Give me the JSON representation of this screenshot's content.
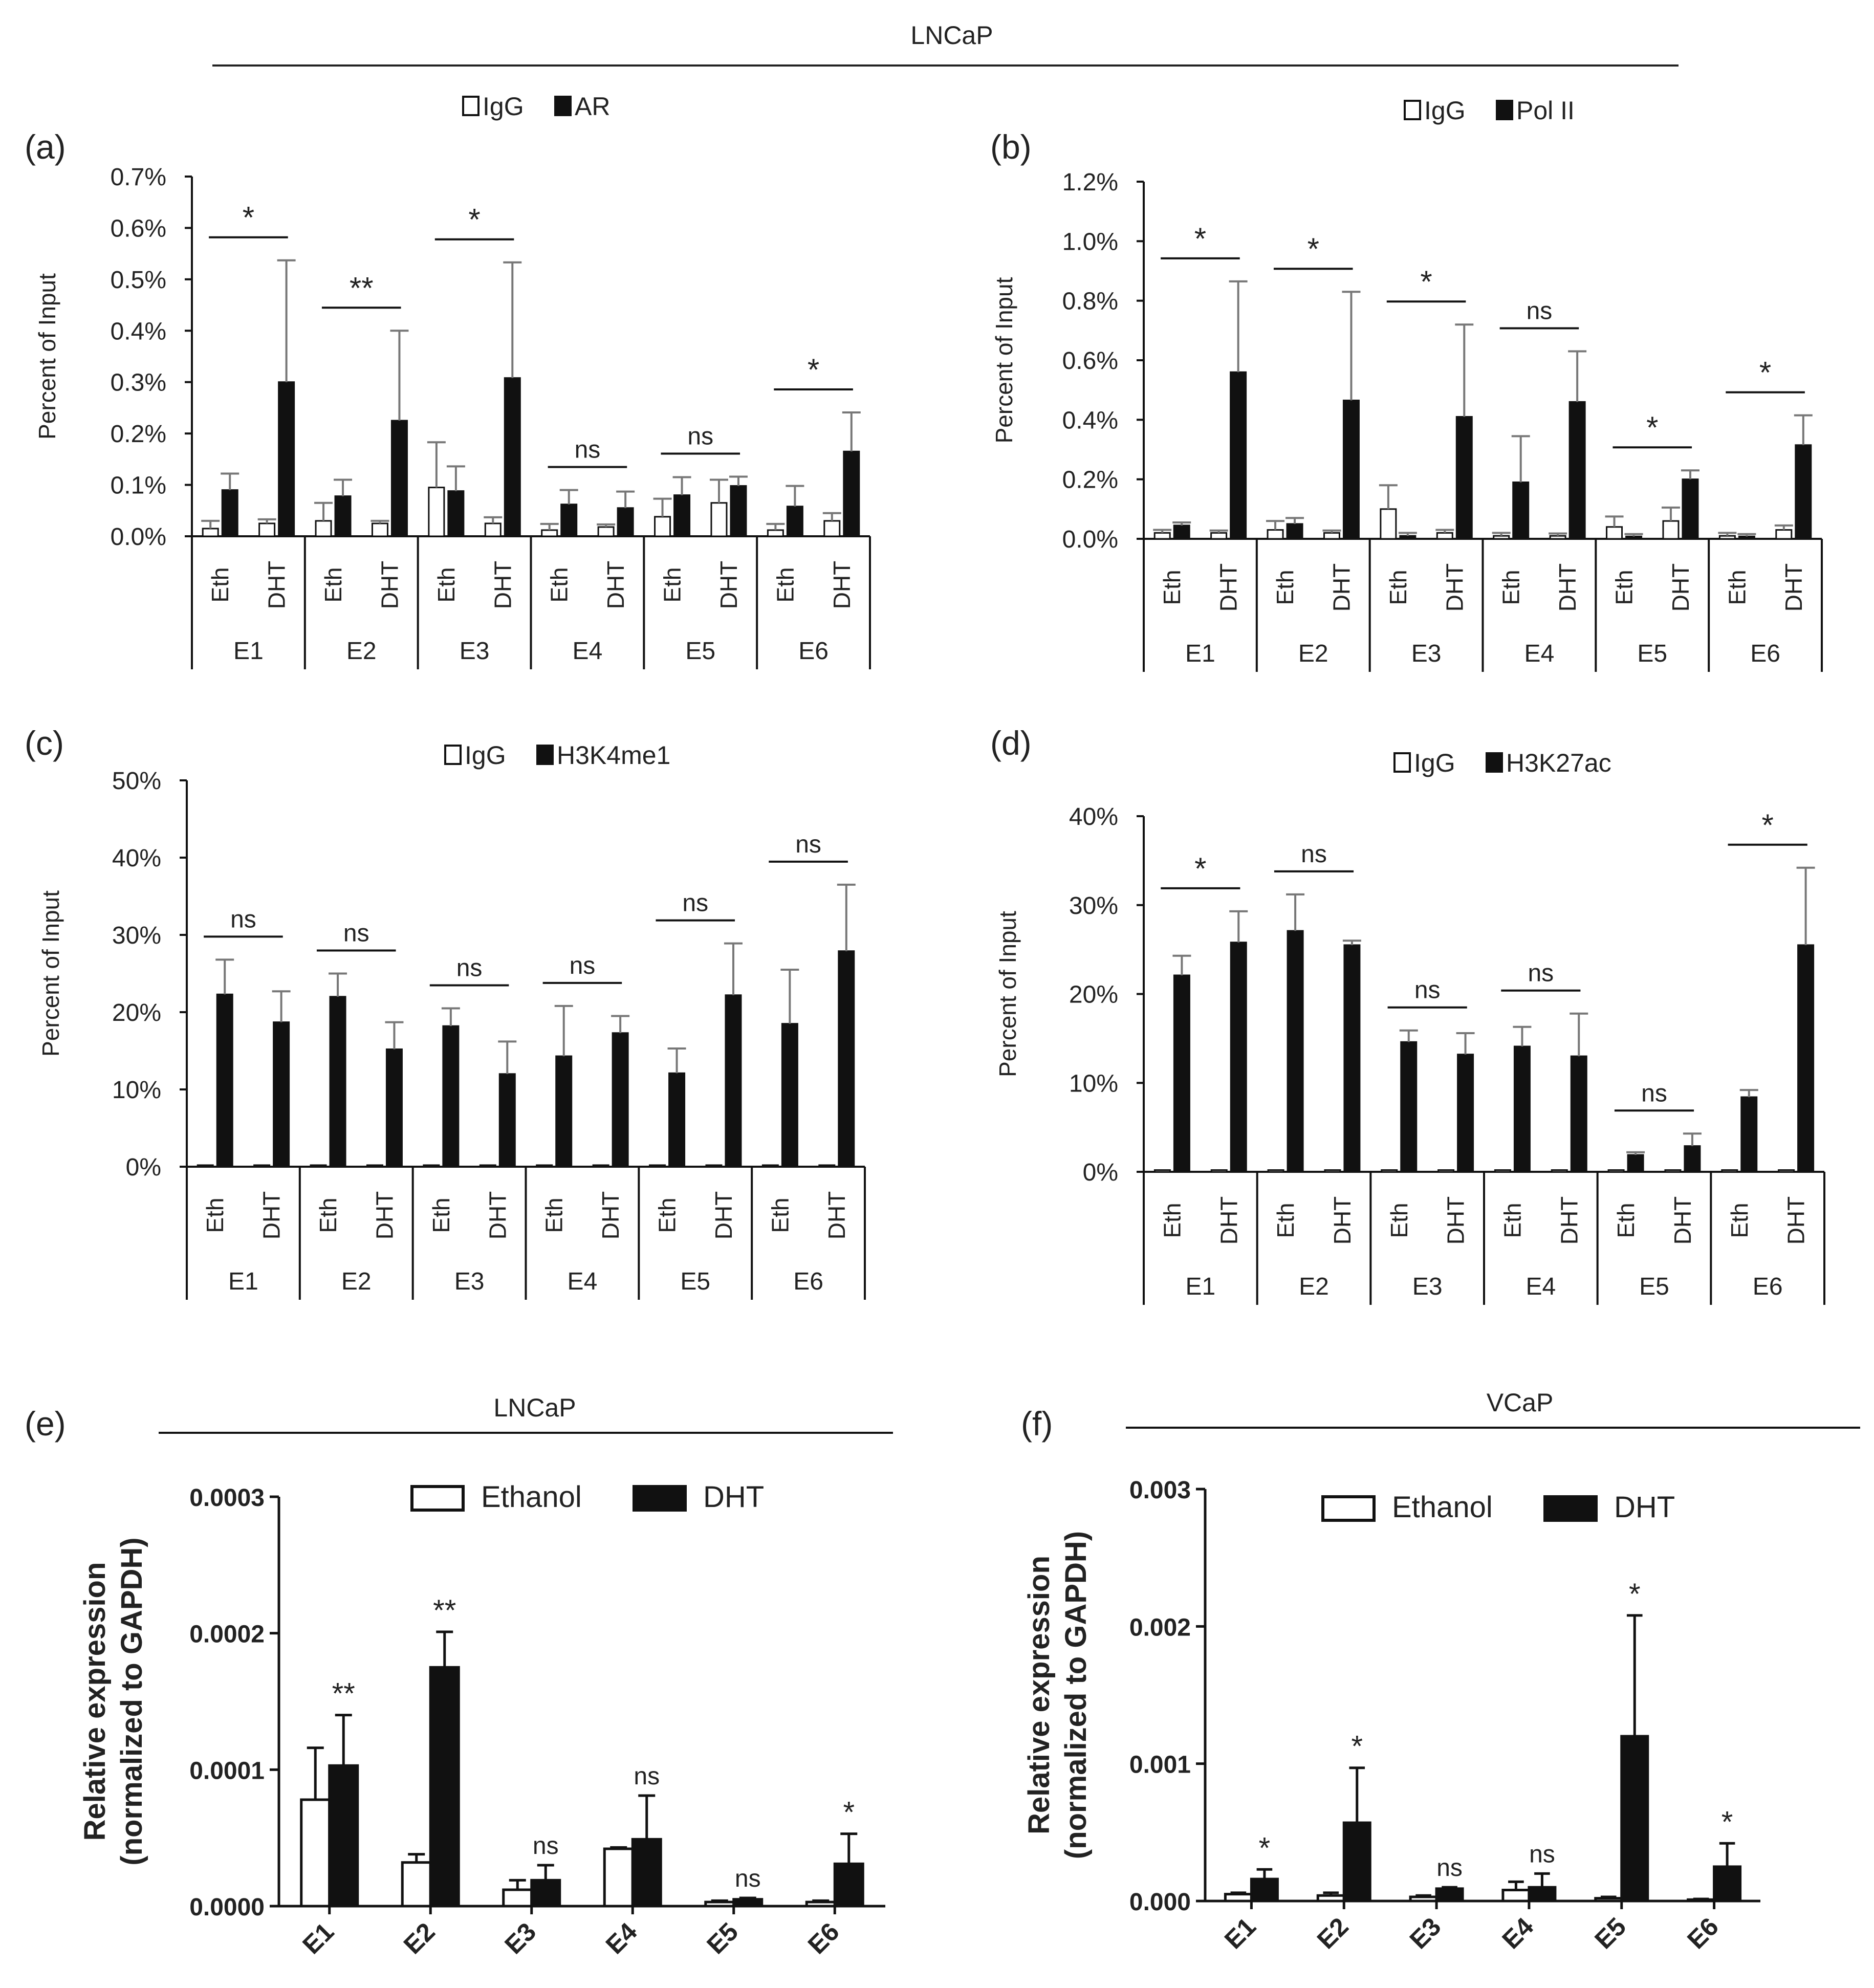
{
  "header": {
    "title": "LNCaP"
  },
  "chart_data": [
    {
      "id": "a",
      "panel_label": "(a)",
      "type": "bar",
      "ylabel": "Percent of Input",
      "ylim": [
        0,
        0.7
      ],
      "yticks": [
        0,
        0.1,
        0.2,
        0.3,
        0.4,
        0.5,
        0.6,
        0.7
      ],
      "ytick_labels": [
        "0.0%",
        "0.1%",
        "0.2%",
        "0.3%",
        "0.4%",
        "0.5%",
        "0.6%",
        "0.7%"
      ],
      "groups": [
        "E1",
        "E2",
        "E3",
        "E4",
        "E5",
        "E6"
      ],
      "conditions": [
        "Eth",
        "DHT"
      ],
      "legend": [
        "IgG",
        "AR"
      ],
      "series": [
        {
          "name": "IgG",
          "eth": [
            0.015,
            0.03,
            0.095,
            0.012,
            0.038,
            0.012
          ],
          "eth_err": [
            0.015,
            0.035,
            0.088,
            0.012,
            0.035,
            0.012
          ],
          "dht": [
            0.025,
            0.025,
            0.025,
            0.018,
            0.065,
            0.03
          ],
          "dht_err": [
            0.008,
            0.005,
            0.012,
            0.005,
            0.045,
            0.015
          ]
        },
        {
          "name": "AR",
          "eth": [
            0.09,
            0.078,
            0.088,
            0.062,
            0.08,
            0.058
          ],
          "eth_err": [
            0.032,
            0.032,
            0.048,
            0.028,
            0.035,
            0.04
          ],
          "dht": [
            0.3,
            0.225,
            0.308,
            0.055,
            0.098,
            0.165
          ],
          "dht_err": [
            0.237,
            0.175,
            0.225,
            0.032,
            0.018,
            0.076
          ]
        }
      ],
      "significance": [
        "*",
        "**",
        "*",
        "ns",
        "ns",
        "*"
      ]
    },
    {
      "id": "b",
      "panel_label": "(b)",
      "type": "bar",
      "ylabel": "Percent of Input",
      "ylim": [
        0,
        1.2
      ],
      "yticks": [
        0,
        0.2,
        0.4,
        0.6,
        0.8,
        1.0,
        1.2
      ],
      "ytick_labels": [
        "0.0%",
        "0.2%",
        "0.4%",
        "0.6%",
        "0.8%",
        "1.0%",
        "1.2%"
      ],
      "groups": [
        "E1",
        "E2",
        "E3",
        "E4",
        "E5",
        "E6"
      ],
      "conditions": [
        "Eth",
        "DHT"
      ],
      "legend": [
        "IgG",
        "Pol II"
      ],
      "series": [
        {
          "name": "IgG",
          "eth": [
            0.02,
            0.03,
            0.1,
            0.01,
            0.04,
            0.01
          ],
          "eth_err": [
            0.01,
            0.03,
            0.08,
            0.01,
            0.035,
            0.01
          ],
          "dht": [
            0.02,
            0.02,
            0.02,
            0.01,
            0.06,
            0.03
          ],
          "dht_err": [
            0.008,
            0.008,
            0.01,
            0.008,
            0.045,
            0.015
          ]
        },
        {
          "name": "Pol II",
          "eth": [
            0.045,
            0.05,
            0.01,
            0.19,
            0.008,
            0.008
          ],
          "eth_err": [
            0.01,
            0.02,
            0.01,
            0.155,
            0.008,
            0.008
          ],
          "dht": [
            0.56,
            0.465,
            0.41,
            0.46,
            0.2,
            0.315
          ],
          "dht_err": [
            0.305,
            0.365,
            0.31,
            0.17,
            0.03,
            0.1
          ]
        }
      ],
      "significance": [
        "*",
        "*",
        "*",
        "ns",
        "*",
        "*"
      ]
    },
    {
      "id": "c",
      "panel_label": "(c)",
      "type": "bar",
      "ylabel": "Percent of Input",
      "ylim": [
        0,
        50
      ],
      "yticks": [
        0,
        10,
        20,
        30,
        40,
        50
      ],
      "ytick_labels": [
        "0%",
        "10%",
        "20%",
        "30%",
        "40%",
        "50%"
      ],
      "groups": [
        "E1",
        "E2",
        "E3",
        "E4",
        "E5",
        "E6"
      ],
      "conditions": [
        "Eth",
        "DHT"
      ],
      "legend": [
        "IgG",
        "H3K4me1"
      ],
      "series": [
        {
          "name": "IgG",
          "eth": [
            0.2,
            0.2,
            0.2,
            0.2,
            0.2,
            0.2
          ],
          "eth_err": [
            0,
            0,
            0,
            0,
            0,
            0
          ],
          "dht": [
            0.2,
            0.2,
            0.2,
            0.2,
            0.2,
            0.2
          ],
          "dht_err": [
            0,
            0,
            0,
            0,
            0,
            0
          ]
        },
        {
          "name": "H3K4me1",
          "eth": [
            22.3,
            22.0,
            18.2,
            14.3,
            12.1,
            18.5
          ],
          "eth_err": [
            4.5,
            3.0,
            2.3,
            6.5,
            3.2,
            7.0
          ],
          "dht": [
            18.7,
            15.2,
            12.0,
            17.3,
            22.2,
            27.9
          ],
          "dht_err": [
            4.0,
            3.5,
            4.2,
            2.2,
            6.7,
            8.6
          ]
        }
      ],
      "significance": [
        "ns",
        "ns",
        "ns",
        "ns",
        "ns",
        "ns"
      ]
    },
    {
      "id": "d",
      "panel_label": "(d)",
      "type": "bar",
      "ylabel": "Percent of Input",
      "ylim": [
        0,
        40
      ],
      "yticks": [
        0,
        10,
        20,
        30,
        40
      ],
      "ytick_labels": [
        "0%",
        "10%",
        "20%",
        "30%",
        "40%"
      ],
      "groups": [
        "E1",
        "E2",
        "E3",
        "E4",
        "E5",
        "E6"
      ],
      "conditions": [
        "Eth",
        "DHT"
      ],
      "legend": [
        "IgG",
        "H3K27ac"
      ],
      "series": [
        {
          "name": "IgG",
          "eth": [
            0.2,
            0.2,
            0.2,
            0.2,
            0.2,
            0.2
          ],
          "eth_err": [
            0,
            0,
            0,
            0,
            0,
            0
          ],
          "dht": [
            0.2,
            0.2,
            0.2,
            0.2,
            0.2,
            0.2
          ],
          "dht_err": [
            0,
            0,
            0,
            0,
            0,
            0
          ]
        },
        {
          "name": "H3K27ac",
          "eth": [
            22.1,
            27.1,
            14.6,
            14.1,
            1.9,
            8.4
          ],
          "eth_err": [
            2.2,
            4.1,
            1.3,
            2.2,
            0.3,
            0.8
          ],
          "dht": [
            25.8,
            25.5,
            13.2,
            13.0,
            2.9,
            25.5
          ],
          "dht_err": [
            3.5,
            0.5,
            2.4,
            4.8,
            1.4,
            8.7
          ]
        }
      ],
      "significance": [
        "*",
        "ns",
        "ns",
        "ns",
        "ns",
        "*"
      ]
    },
    {
      "id": "e",
      "panel_label": "(e)",
      "type": "bar",
      "cell_line": "LNCaP",
      "ylabel": "Relative expression",
      "ylabel2": "(normalized to GAPDH)",
      "ylim": [
        0,
        0.0003
      ],
      "yticks": [
        0,
        0.0001,
        0.0002,
        0.0003
      ],
      "ytick_labels": [
        "0.0000",
        "0.0001",
        "0.0002",
        "0.0003"
      ],
      "categories": [
        "E1",
        "E2",
        "E3",
        "E4",
        "E5",
        "E6"
      ],
      "legend": [
        "Ethanol",
        "DHT"
      ],
      "series": [
        {
          "name": "Ethanol",
          "values": [
            7.8e-05,
            3.2e-05,
            1.2e-05,
            4.2e-05,
            3e-06,
            3e-06
          ],
          "err": [
            3.8e-05,
            6e-06,
            7e-06,
            1e-06,
            1e-06,
            1e-06
          ]
        },
        {
          "name": "DHT",
          "values": [
            0.000103,
            0.000175,
            1.9e-05,
            4.9e-05,
            5e-06,
            3.1e-05
          ],
          "err": [
            3.7e-05,
            2.6e-05,
            1.1e-05,
            3.2e-05,
            1e-06,
            2.2e-05
          ]
        }
      ],
      "significance": [
        "**",
        "**",
        "ns",
        "ns",
        "ns",
        "*"
      ]
    },
    {
      "id": "f",
      "panel_label": "(f)",
      "type": "bar",
      "cell_line": "VCaP",
      "ylabel": "Relative expression",
      "ylabel2": "(normalized to GAPDH)",
      "ylim": [
        0,
        0.003
      ],
      "yticks": [
        0,
        0.001,
        0.002,
        0.003
      ],
      "ytick_labels": [
        "0.000",
        "0.001",
        "0.002",
        "0.003"
      ],
      "categories": [
        "E1",
        "E2",
        "E3",
        "E4",
        "E5",
        "E6"
      ],
      "legend": [
        "Ethanol",
        "DHT"
      ],
      "series": [
        {
          "name": "Ethanol",
          "values": [
            5e-05,
            4e-05,
            3e-05,
            8e-05,
            2e-05,
            1e-05
          ],
          "err": [
            1e-05,
            2e-05,
            1e-05,
            6e-05,
            1e-05,
            5e-06
          ]
        },
        {
          "name": "DHT",
          "values": [
            0.00016,
            0.00057,
            9e-05,
            0.0001,
            0.0012,
            0.00025
          ],
          "err": [
            7e-05,
            0.0004,
            1e-05,
            0.0001,
            0.00088,
            0.00017
          ]
        }
      ],
      "significance": [
        "*",
        "*",
        "ns",
        "ns",
        "*",
        "*"
      ]
    }
  ]
}
